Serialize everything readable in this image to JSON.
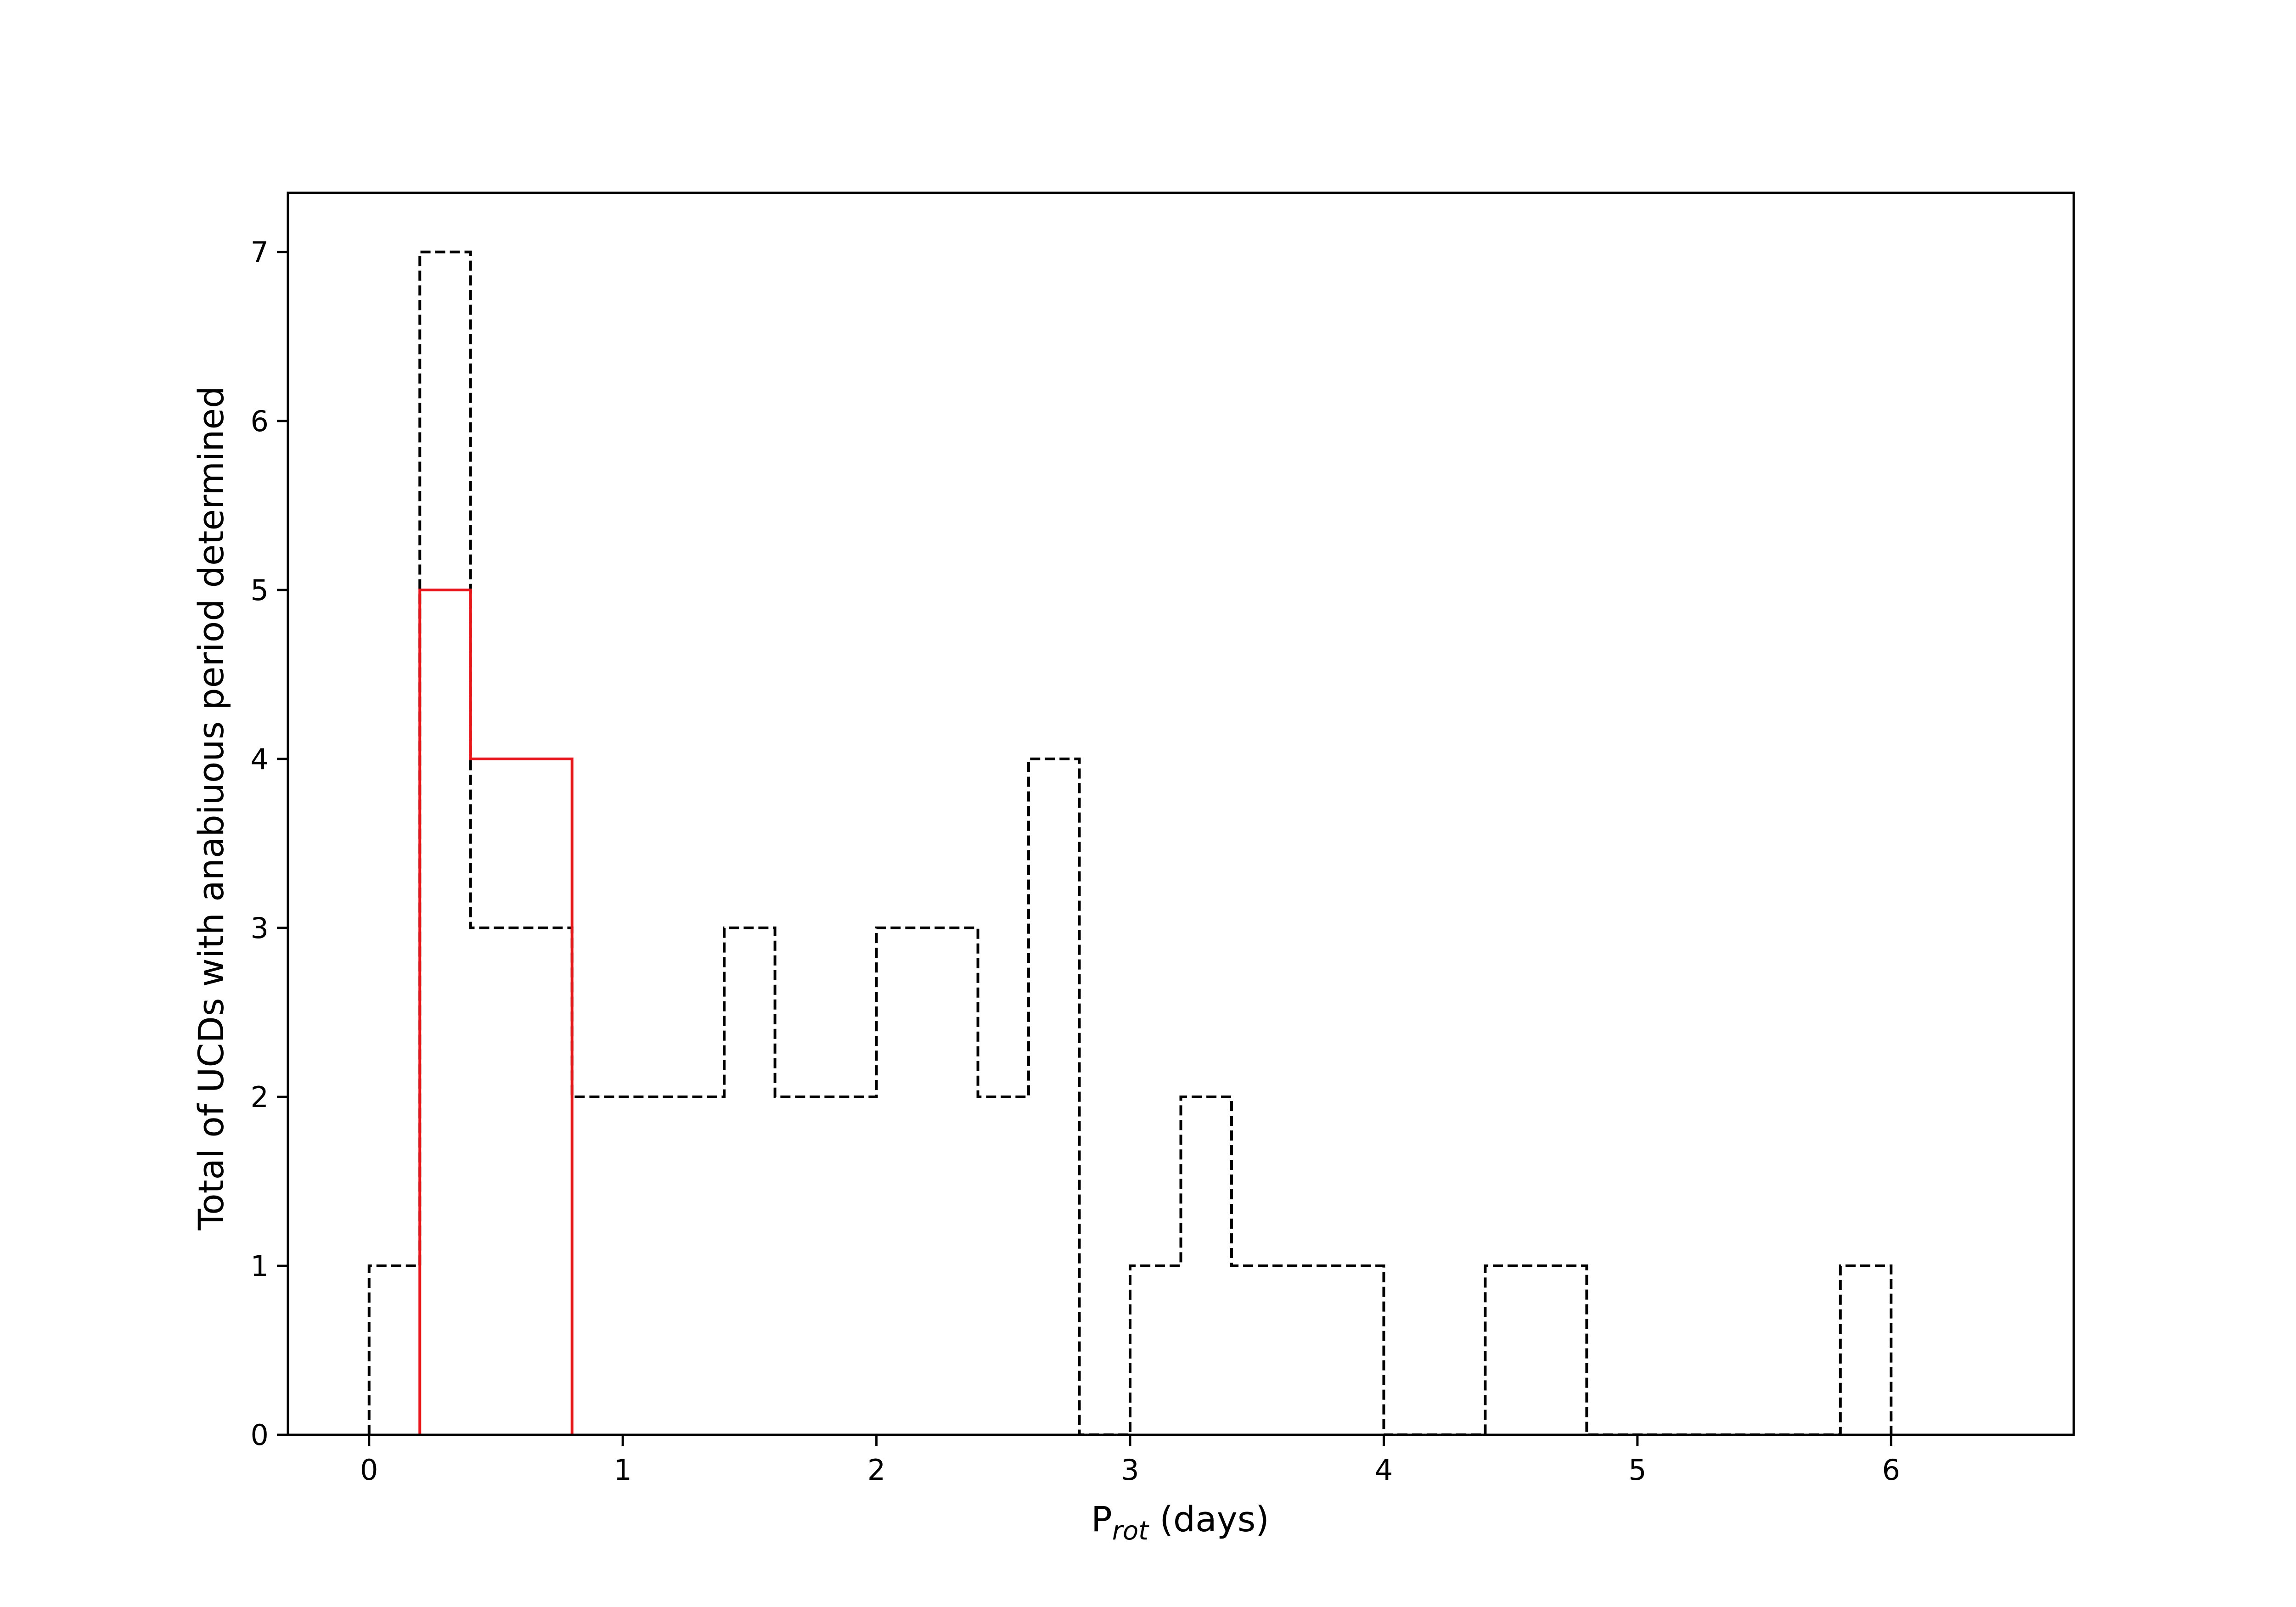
{
  "chart_data": {
    "type": "histogram",
    "title": "",
    "xlabel": {
      "main": "P",
      "subscript": "rot",
      "suffix": " (days)"
    },
    "ylabel": "Total of UCDs with anabiuous period determined",
    "xlim": [
      -0.32,
      6.72
    ],
    "ylim": [
      0,
      7.35
    ],
    "x_ticks": [
      0,
      1,
      2,
      3,
      4,
      5,
      6
    ],
    "y_ticks": [
      0,
      1,
      2,
      3,
      4,
      5,
      6,
      7
    ],
    "grid": false,
    "legend": "none",
    "series": [
      {
        "style": "dashed",
        "color": "#000000",
        "bin_edges": [
          0.0,
          0.2,
          0.4,
          0.6,
          0.8,
          1.0,
          1.2,
          1.4,
          1.6,
          1.8,
          2.0,
          2.2,
          2.4,
          2.6,
          2.8,
          3.0,
          3.2,
          3.4,
          3.6,
          3.8,
          4.0,
          4.2,
          4.4,
          4.6,
          4.8,
          5.0,
          5.2,
          5.4,
          5.6,
          5.8,
          6.0
        ],
        "counts": [
          1,
          7,
          3,
          3,
          2,
          2,
          2,
          3,
          2,
          2,
          3,
          3,
          2,
          4,
          0,
          1,
          2,
          1,
          1,
          1,
          0,
          0,
          1,
          1,
          0,
          0,
          0,
          0,
          0,
          1
        ]
      },
      {
        "style": "solid",
        "color": "#e8151b",
        "bin_edges": [
          0.2,
          0.4,
          0.6,
          0.8
        ],
        "counts": [
          5,
          4,
          4
        ]
      }
    ]
  }
}
